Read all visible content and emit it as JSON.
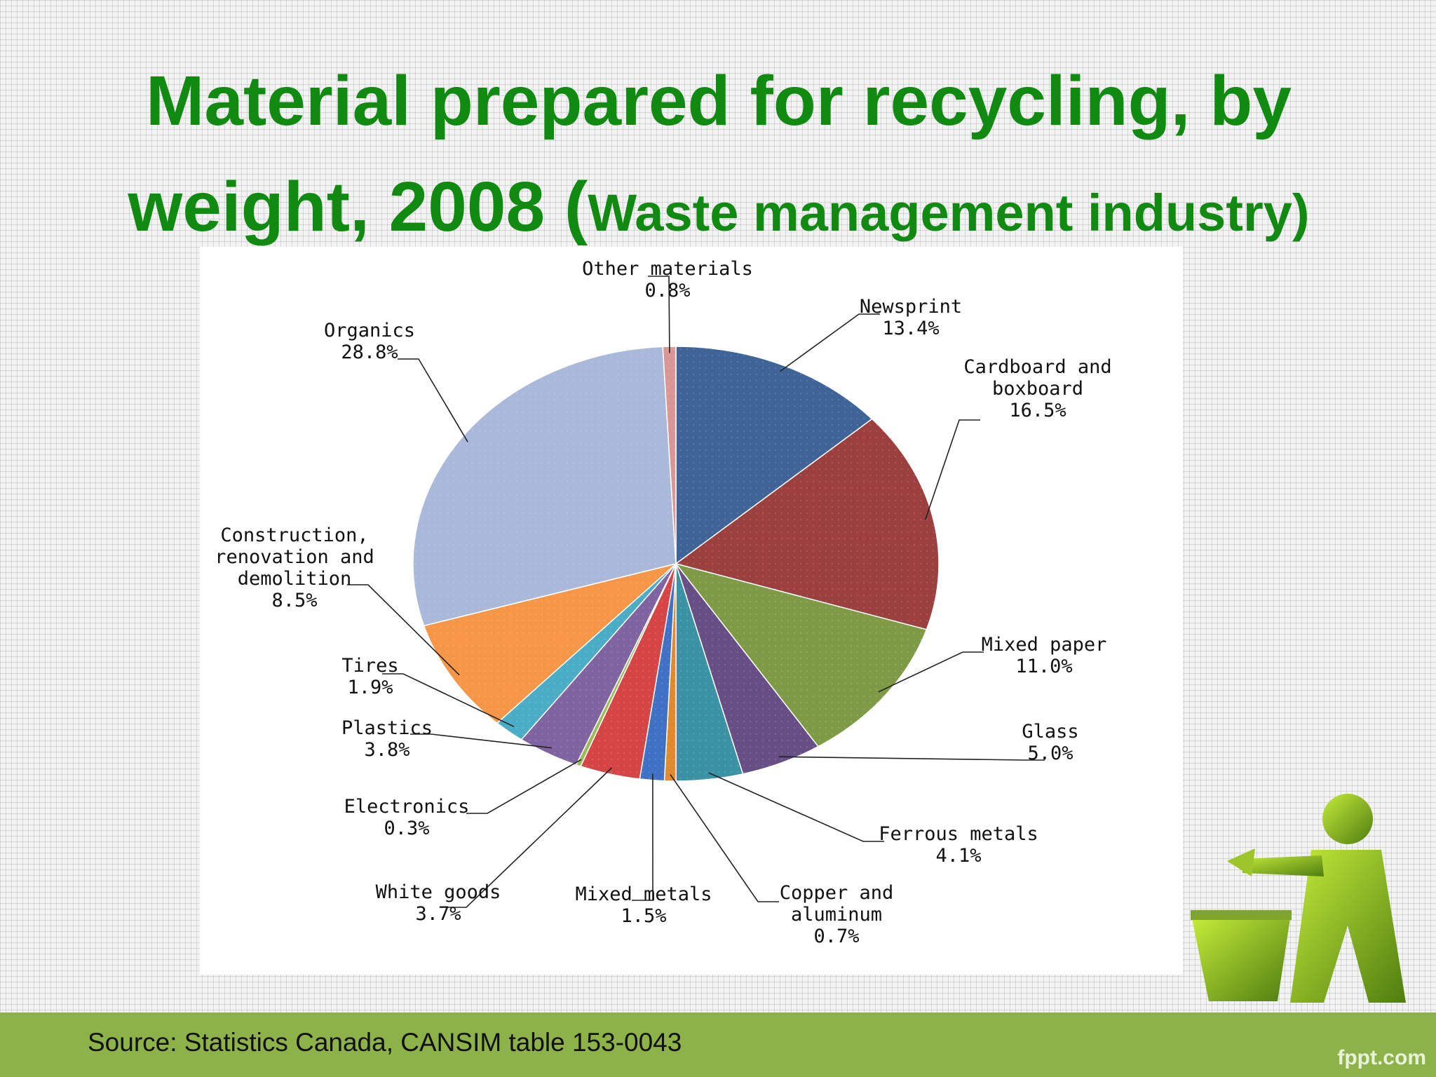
{
  "slide": {
    "title_main": "Material prepared for recycling, by weight, 2008 (",
    "title_sub": "Waste management industry)",
    "source": "Source: Statistics Canada, CANSIM table 153-0043",
    "brand": "fppt.com"
  },
  "chart_data": {
    "type": "pie",
    "title": "",
    "unit": "%",
    "slices": [
      {
        "label_lines": [
          "Newsprint",
          "13.4%"
        ],
        "label": "Newsprint",
        "value": 13.4,
        "color": "#3f6497"
      },
      {
        "label_lines": [
          "Cardboard and",
          "boxboard",
          "16.5%"
        ],
        "label": "Cardboard and boxboard",
        "value": 16.5,
        "color": "#9b3f3f"
      },
      {
        "label_lines": [
          "Mixed paper",
          "11.0%"
        ],
        "label": "Mixed paper",
        "value": 11.0,
        "color": "#7f9a44"
      },
      {
        "label_lines": [
          "Glass",
          "5.0%"
        ],
        "label": "Glass",
        "value": 5.0,
        "color": "#674f86"
      },
      {
        "label_lines": [
          "Ferrous metals",
          "4.1%"
        ],
        "label": "Ferrous metals",
        "value": 4.1,
        "color": "#3a92a4"
      },
      {
        "label_lines": [
          "Copper and",
          "aluminum",
          "0.7%"
        ],
        "label": "Copper and aluminum",
        "value": 0.7,
        "color": "#e08a2e"
      },
      {
        "label_lines": [
          "Mixed metals",
          "1.5%"
        ],
        "label": "Mixed metals",
        "value": 1.5,
        "color": "#3f72c4"
      },
      {
        "label_lines": [
          "White goods",
          "3.7%"
        ],
        "label": "White goods",
        "value": 3.7,
        "color": "#d64545"
      },
      {
        "label_lines": [
          "Electronics",
          "0.3%"
        ],
        "label": "Electronics",
        "value": 0.3,
        "color": "#9bbb59"
      },
      {
        "label_lines": [
          "Plastics",
          "3.8%"
        ],
        "label": "Plastics",
        "value": 3.8,
        "color": "#8064a2"
      },
      {
        "label_lines": [
          "Tires",
          "1.9%"
        ],
        "label": "Tires",
        "value": 1.9,
        "color": "#4bacc6"
      },
      {
        "label_lines": [
          "Construction,",
          "renovation and",
          "demolition",
          "8.5%"
        ],
        "label": "Construction, renovation and demolition",
        "value": 8.5,
        "color": "#f79646"
      },
      {
        "label_lines": [
          "Organics",
          "28.8%"
        ],
        "label": "Organics",
        "value": 28.8,
        "color": "#aab9d9"
      },
      {
        "label_lines": [
          "Other materials",
          "0.8%"
        ],
        "label": "Other materials",
        "value": 0.8,
        "color": "#d99694"
      }
    ]
  }
}
